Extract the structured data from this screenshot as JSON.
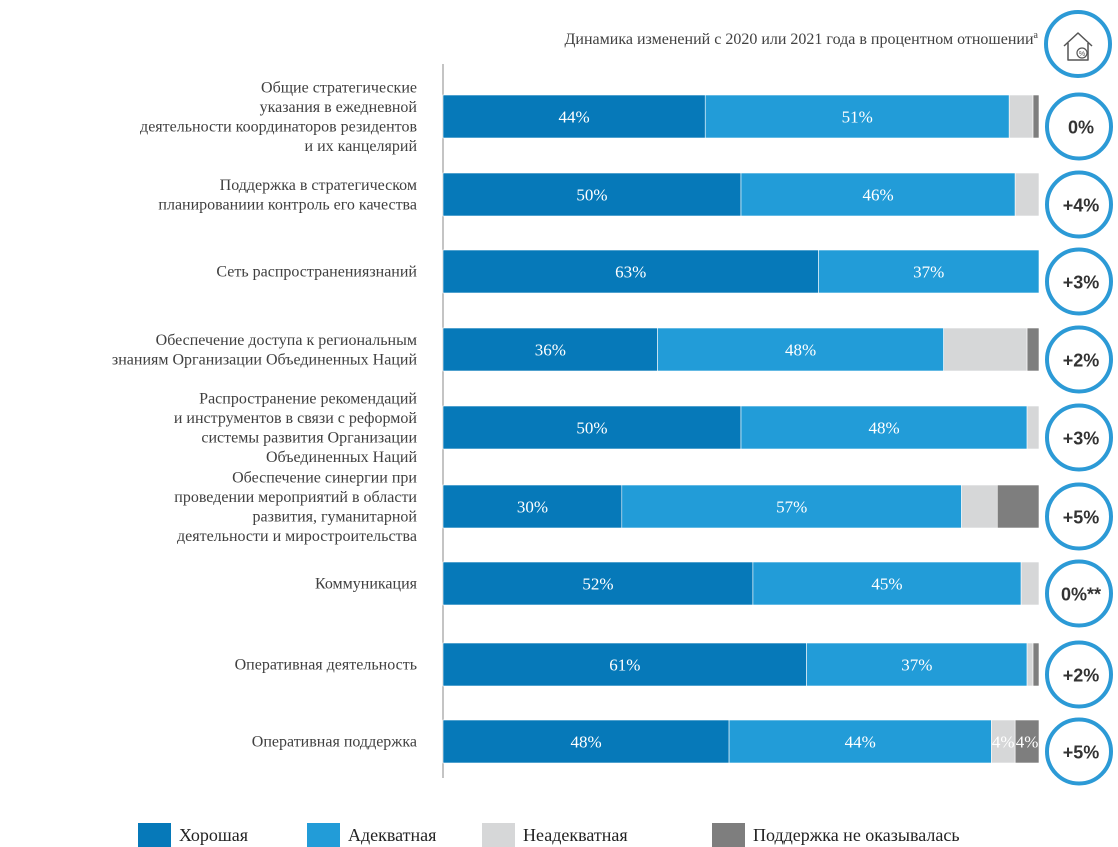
{
  "chart_data": {
    "type": "bar",
    "orientation": "horizontal",
    "stacked": true,
    "title": "",
    "header": "Динамика изменений с 2020 или 2021 года в процентном отношении",
    "header_footnote_mark": "a",
    "xlabel": "",
    "ylabel": "",
    "xlim": [
      0,
      100
    ],
    "grid": false,
    "legend_position": "bottom",
    "categories": [
      [
        "Общие стратегические",
        "указания в ежедневной",
        "деятельности координаторов резидентов",
        "и их канцелярий"
      ],
      [
        "Поддержка в стратегическом",
        "планированиии контроль его качества"
      ],
      [
        "Сеть распространениязнаний"
      ],
      [
        "Обеспечение доступа к региональным",
        "знаниям Организации Объединенных Наций"
      ],
      [
        "Распространение рекомендаций",
        "и инструментов в связи с реформой",
        "системы развития Организации",
        "Объединенных Наций"
      ],
      [
        "Обеспечение синергии при",
        "проведении мероприятий в области",
        "развития, гуманитарной",
        "деятельности и миростроительства"
      ],
      [
        "Коммуникация"
      ],
      [
        "Оперативная деятельность"
      ],
      [
        "Оперативная поддержка"
      ]
    ],
    "series": [
      {
        "name": "Хорошая",
        "color": "#0679b9",
        "values": [
          44,
          50,
          63,
          36,
          50,
          30,
          52,
          61,
          48
        ],
        "labels": [
          "44%",
          "50%",
          "63%",
          "36%",
          "50%",
          "30%",
          "52%",
          "61%",
          "48%"
        ]
      },
      {
        "name": "Адекватная",
        "color": "#229cd8",
        "values": [
          51,
          46,
          37,
          48,
          48,
          57,
          45,
          37,
          44
        ],
        "labels": [
          "51%",
          "46%",
          "37%",
          "48%",
          "48%",
          "57%",
          "45%",
          "37%",
          "44%"
        ]
      },
      {
        "name": "Неадекватная",
        "color": "#d6d7d8",
        "values": [
          4,
          4,
          0,
          14,
          2,
          6,
          3,
          1,
          4
        ],
        "labels": [
          "",
          "",
          "",
          "",
          "",
          "",
          "",
          "",
          "4%"
        ]
      },
      {
        "name": "Поддержка не оказывалась",
        "color": "#7e7e7e",
        "values": [
          1,
          0,
          0,
          2,
          0,
          7,
          0,
          1,
          4
        ],
        "labels": [
          "",
          "",
          "",
          "",
          "",
          "",
          "",
          "",
          "4%"
        ]
      }
    ],
    "changes": [
      "0%",
      "+4%",
      "+3%",
      "+2%",
      "+3%",
      "+5%",
      "0%**",
      "+2%",
      "+5%"
    ],
    "header_icon": "house-percent-icon",
    "badge_color": "#2c9ad6"
  }
}
